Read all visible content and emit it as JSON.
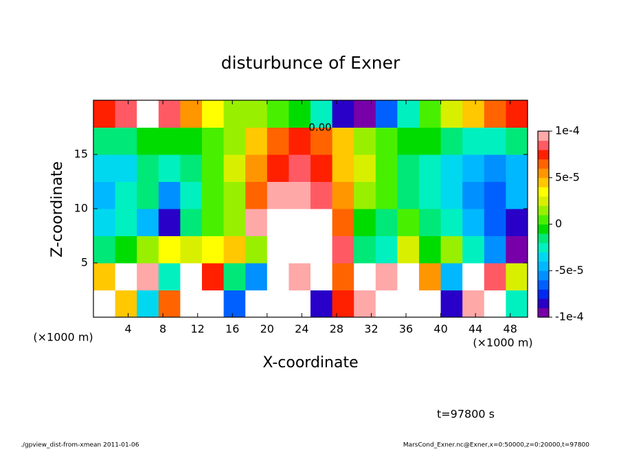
{
  "chart_data": {
    "type": "heatmap",
    "title": "disturbunce of Exner",
    "x_label": "X-coordinate",
    "y_label": "Z-coordinate",
    "x_unit": "(×1000 m)",
    "y_unit": "(×1000 m)",
    "time_label": "t=97800 s",
    "footer_left": "./gpview_dist-from-xmean  2011-01-06",
    "footer_right": "MarsCond_Exner.nc@Exner,x=0:50000,z=0:20000,t=97800",
    "annotations": [
      "0.00"
    ],
    "xlim": [
      0,
      50
    ],
    "ylim": [
      0,
      20
    ],
    "xticks": [
      4,
      8,
      12,
      16,
      20,
      24,
      28,
      32,
      36,
      40,
      44,
      48
    ],
    "yticks": [
      5,
      10,
      15
    ],
    "x": [
      1.25,
      3.75,
      6.25,
      8.75,
      11.25,
      13.75,
      16.25,
      18.75,
      21.25,
      23.75,
      26.25,
      28.75,
      31.25,
      33.75,
      36.25,
      38.75,
      41.25,
      43.75,
      46.25,
      48.75
    ],
    "y": [
      1.25,
      3.75,
      6.25,
      8.75,
      11.25,
      13.75,
      16.25,
      18.75
    ],
    "z": [
      [
        0.00012,
        4e-05,
        -4e-05,
        6e-05,
        0.00012,
        0.00012,
        -7e-05,
        0.00012,
        0.00012,
        0.00012,
        -8e-05,
        7e-05,
        9e-05,
        0.00012,
        0.00012,
        0.00012,
        -8e-05,
        9e-05,
        0.00012,
        -3e-05
      ],
      [
        4e-05,
        0.00012,
        9e-05,
        -3e-05,
        0.00012,
        7e-05,
        -2e-05,
        -6e-05,
        0.00012,
        9e-05,
        0.00012,
        6e-05,
        0.00012,
        9e-05,
        0.00012,
        5e-05,
        -5e-05,
        0.00012,
        8e-05,
        2e-05
      ],
      [
        -2e-05,
        -1e-05,
        1e-05,
        3e-05,
        2e-05,
        3e-05,
        4e-05,
        1e-05,
        0.00012,
        0.00012,
        0.00012,
        8e-05,
        -2e-05,
        -3e-05,
        2e-05,
        -1e-05,
        1e-05,
        -3e-05,
        -6e-05,
        -9e-05
      ],
      [
        -4e-05,
        -3e-05,
        -5e-05,
        -8e-05,
        -2e-05,
        0,
        1e-05,
        9e-05,
        0.00012,
        0.00012,
        0.00012,
        6e-05,
        -1e-05,
        -2e-05,
        0,
        -2e-05,
        -3e-05,
        -5e-05,
        -7e-05,
        -8e-05
      ],
      [
        -5e-05,
        -3e-05,
        -2e-05,
        -6e-05,
        -3e-05,
        0,
        1e-05,
        6e-05,
        9e-05,
        9e-05,
        8e-05,
        5e-05,
        1e-05,
        0,
        -2e-05,
        -3e-05,
        -4e-05,
        -6e-05,
        -7e-05,
        -5e-05
      ],
      [
        -4e-05,
        -4e-05,
        -2e-05,
        -3e-05,
        -2e-05,
        0,
        2e-05,
        5e-05,
        7e-05,
        8e-05,
        7e-05,
        4e-05,
        2e-05,
        0,
        -2e-05,
        -3e-05,
        -4e-05,
        -5e-05,
        -6e-05,
        -5e-05
      ],
      [
        -2e-05,
        -2e-05,
        -1e-05,
        -1e-05,
        -1e-05,
        0,
        1e-05,
        4e-05,
        6e-05,
        7e-05,
        6e-05,
        4e-05,
        1e-05,
        0,
        -1e-05,
        -1e-05,
        -2e-05,
        -3e-05,
        -3e-05,
        -2e-05
      ],
      [
        7e-05,
        8e-05,
        0.00012,
        8e-05,
        5e-05,
        3e-05,
        1e-05,
        1e-05,
        0,
        -1e-05,
        -3e-05,
        -8e-05,
        -9e-05,
        -7e-05,
        -3e-05,
        0,
        2e-05,
        4e-05,
        6e-05,
        7e-05
      ]
    ],
    "clim": [
      -0.0001,
      0.0001
    ],
    "cticks": [
      {
        "value": 0.0001,
        "label": "1e-4"
      },
      {
        "value": 5e-05,
        "label": "5e-5"
      },
      0,
      {
        "value": -5e-05,
        "label": "-5e-5"
      },
      {
        "value": -0.0001,
        "label": "-1e-4"
      }
    ],
    "colors": [
      "#7800a8",
      "#2800c8",
      "#0028f0",
      "#0060ff",
      "#0090ff",
      "#00b8ff",
      "#00d8f0",
      "#00f0c0",
      "#00e878",
      "#00dc00",
      "#48f000",
      "#98f000",
      "#d8f000",
      "#ffff00",
      "#ffc800",
      "#ff9600",
      "#ff6400",
      "#ff2000",
      "#ff5a64",
      "#ffa8a8"
    ],
    "over_color": "#ffffff"
  }
}
